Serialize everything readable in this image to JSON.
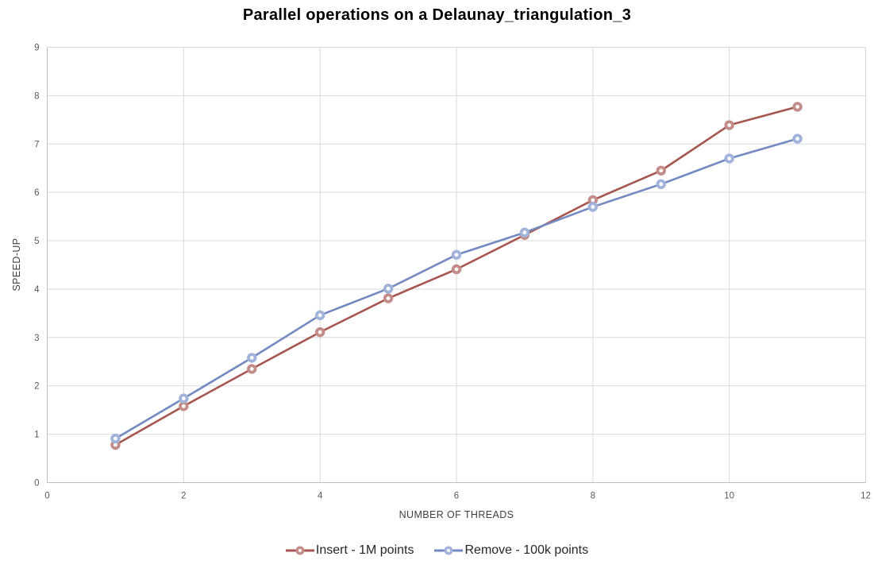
{
  "chart_data": {
    "type": "line",
    "title": "Parallel operations on a Delaunay_triangulation_3",
    "xlabel": "NUMBER OF THREADS",
    "ylabel": "SPEED-UP",
    "xlim": [
      0,
      12
    ],
    "ylim": [
      0,
      9
    ],
    "x_ticks": [
      0,
      2,
      4,
      6,
      8,
      10,
      12
    ],
    "y_ticks": [
      0,
      1,
      2,
      3,
      4,
      5,
      6,
      7,
      8,
      9
    ],
    "grid": true,
    "legend_position": "bottom",
    "x": [
      1,
      2,
      3,
      4,
      5,
      6,
      7,
      8,
      9,
      10,
      11
    ],
    "series": [
      {
        "name": "Insert - 1M points",
        "color": "#A6564F",
        "marker_color": "#C38C88",
        "values": [
          0.78,
          1.58,
          2.35,
          3.11,
          3.81,
          4.41,
          5.12,
          5.84,
          6.45,
          7.39,
          7.77
        ]
      },
      {
        "name": "Remove - 100k points",
        "color": "#7289C2",
        "marker_color": "#A1B3DB",
        "values": [
          0.91,
          1.74,
          2.58,
          3.46,
          4.01,
          4.71,
          5.17,
          5.7,
          6.17,
          6.7,
          7.11
        ]
      }
    ],
    "colors": {
      "grid": "#D9D9D9",
      "axis": "#BFBFBF",
      "tick_label": "#595959",
      "axis_title": "#3F3F3F",
      "title": "#000000",
      "legend_text": "#262626",
      "background": "#FFFFFF"
    }
  }
}
